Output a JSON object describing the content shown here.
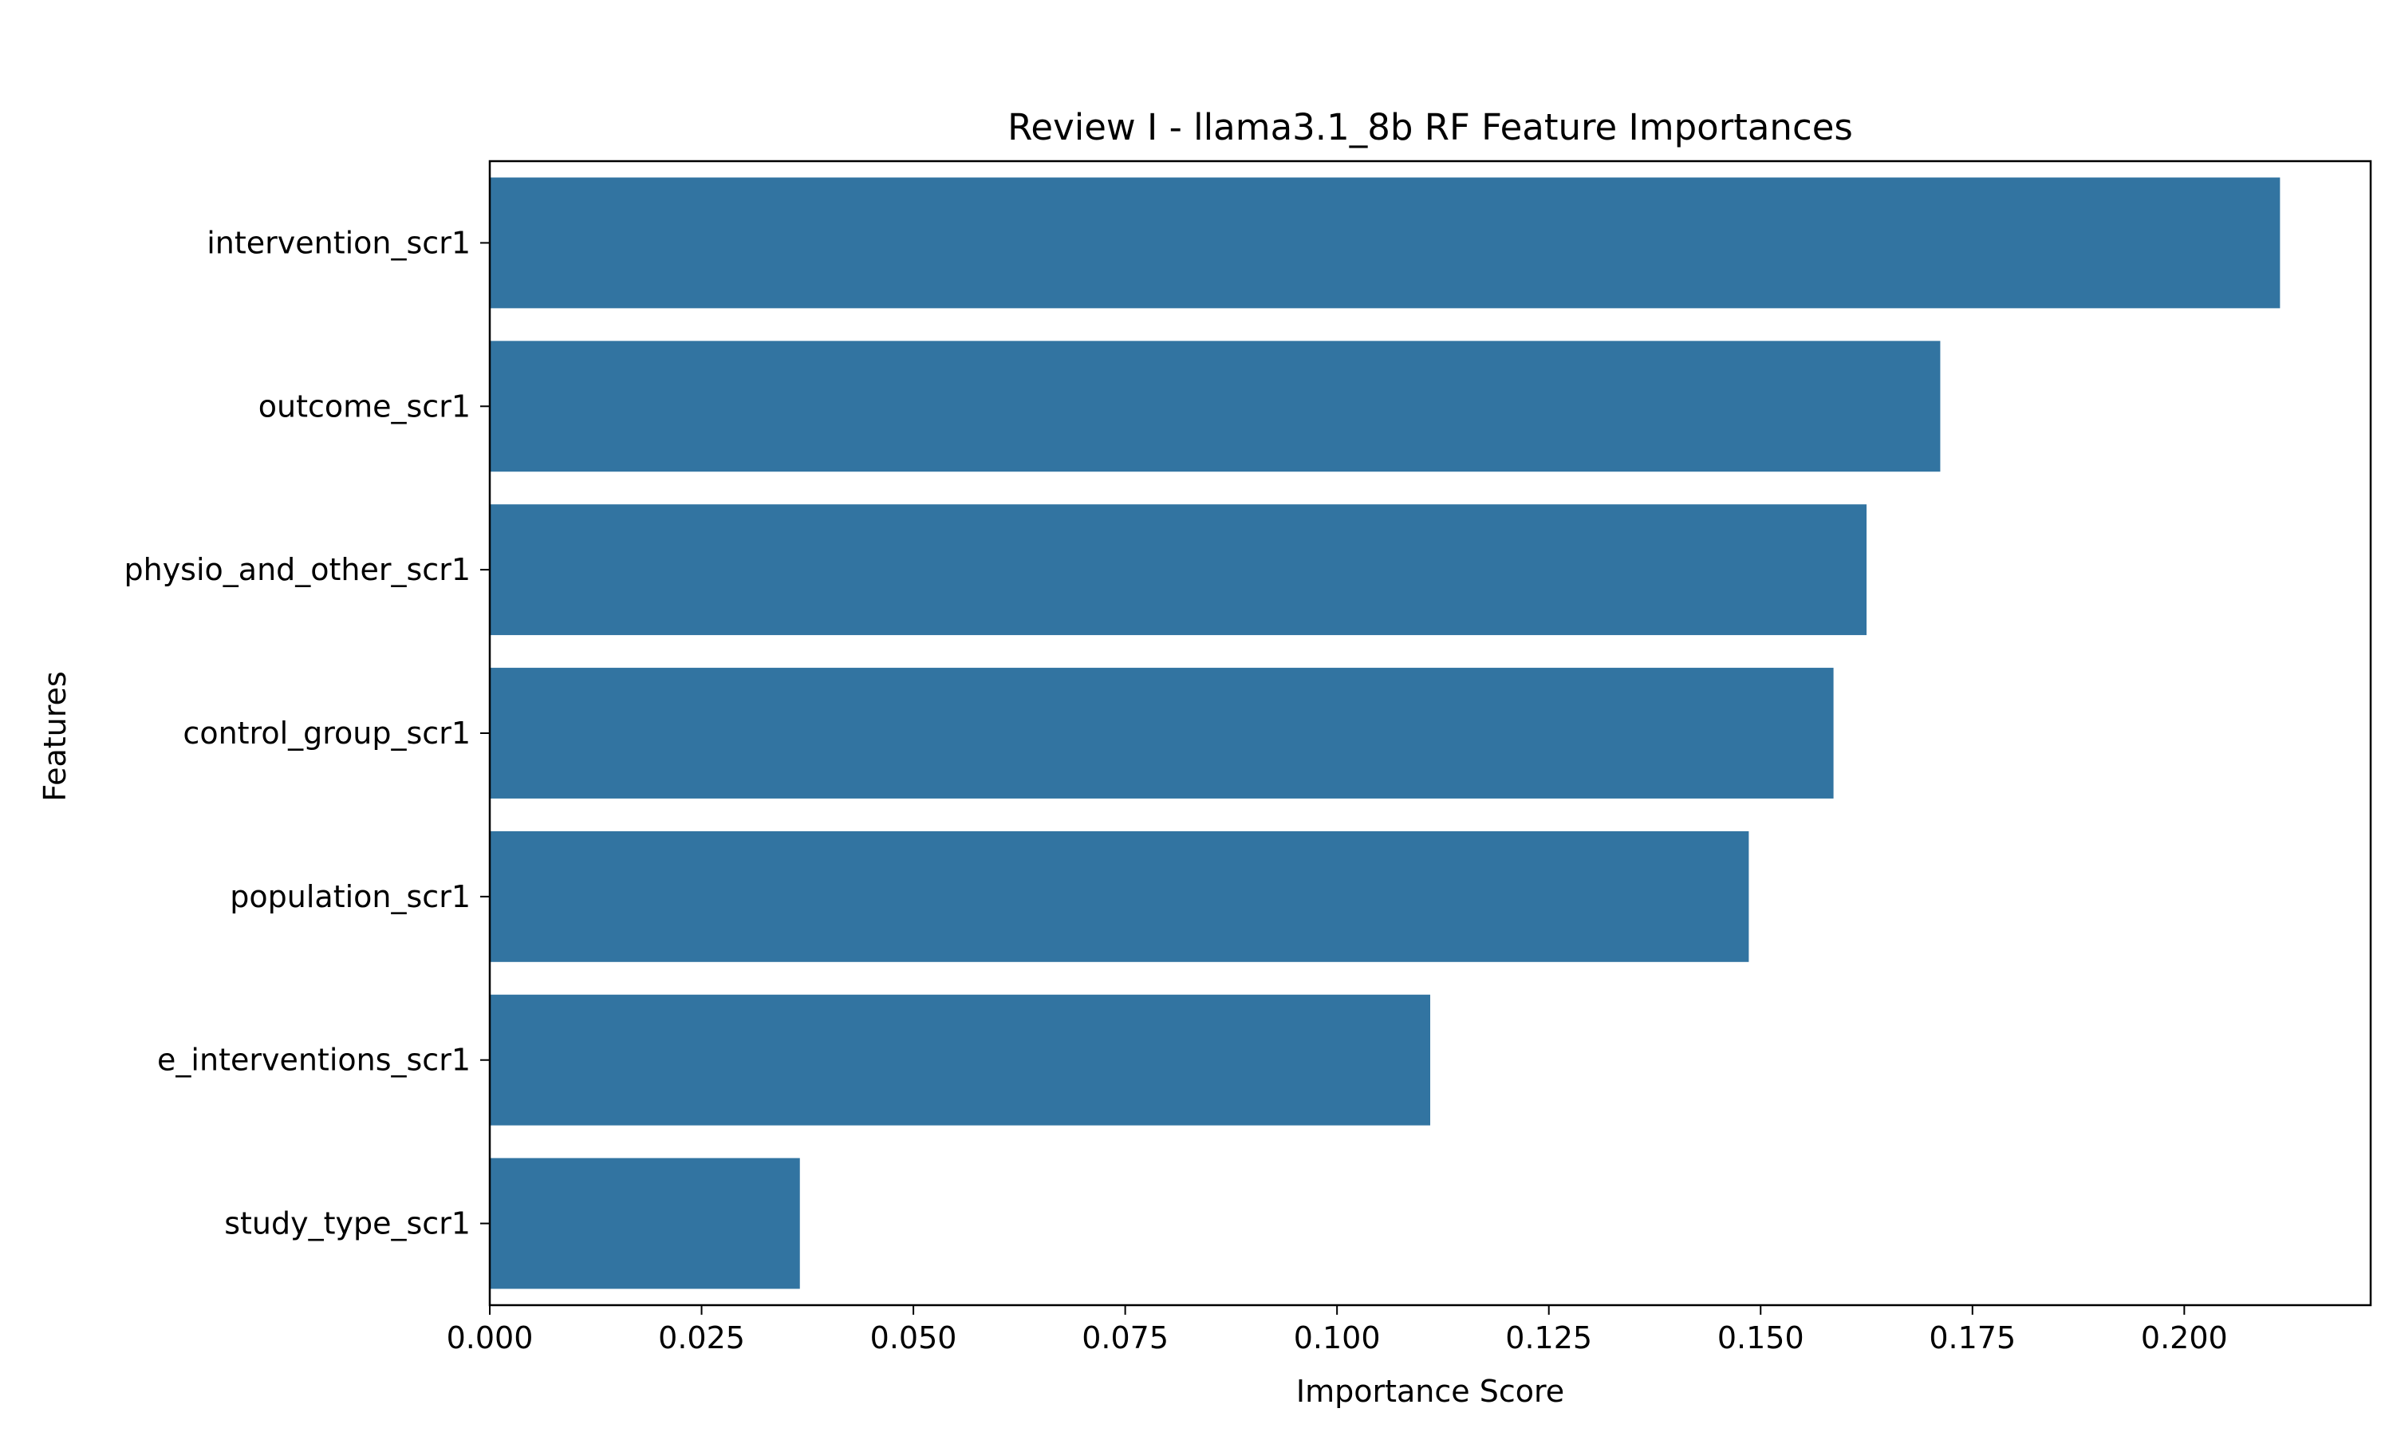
{
  "chart_data": {
    "type": "bar",
    "orientation": "horizontal",
    "title": "Review I - llama3.1_8b RF Feature Importances",
    "xlabel": "Importance Score",
    "ylabel": "Features",
    "categories": [
      "intervention_scr1",
      "outcome_scr1",
      "physio_and_other_scr1",
      "control_group_scr1",
      "population_scr1",
      "e_interventions_scr1",
      "study_type_scr1"
    ],
    "values": [
      0.2113,
      0.1712,
      0.1625,
      0.1586,
      0.1486,
      0.111,
      0.0366
    ],
    "xlim": [
      0.0,
      0.222
    ],
    "xticks": [
      0.0,
      0.025,
      0.05,
      0.075,
      0.1,
      0.125,
      0.15,
      0.175,
      0.2
    ],
    "xtick_labels": [
      "0.000",
      "0.025",
      "0.050",
      "0.075",
      "0.100",
      "0.125",
      "0.150",
      "0.175",
      "0.200"
    ],
    "bar_color": "#3274a1",
    "grid": false,
    "legend": "none"
  }
}
